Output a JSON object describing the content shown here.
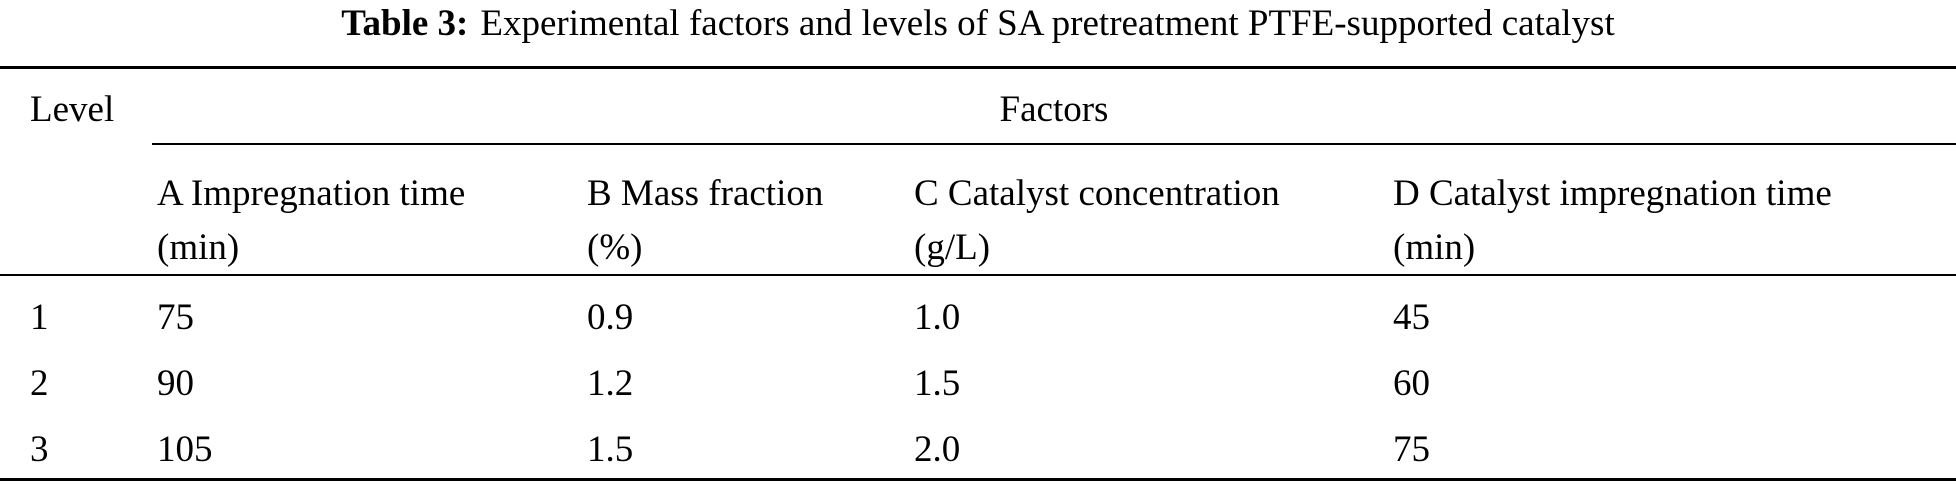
{
  "caption": {
    "label": "Table 3:",
    "title": "Experimental factors and levels of SA pretreatment PTFE-supported catalyst"
  },
  "table": {
    "level_header": "Level",
    "factors_header": "Factors",
    "columns": [
      {
        "name": "A Impregnation time",
        "unit": "(min)"
      },
      {
        "name": "B Mass fraction",
        "unit": "(%)"
      },
      {
        "name": "C Catalyst concentration",
        "unit": "(g/L)"
      },
      {
        "name": "D Catalyst impregnation time",
        "unit": "(min)"
      }
    ],
    "rows": [
      {
        "level": "1",
        "values": [
          "75",
          "0.9",
          "1.0",
          "45"
        ]
      },
      {
        "level": "2",
        "values": [
          "90",
          "1.2",
          "1.5",
          "60"
        ]
      },
      {
        "level": "3",
        "values": [
          "105",
          "1.5",
          "2.0",
          "75"
        ]
      }
    ]
  }
}
